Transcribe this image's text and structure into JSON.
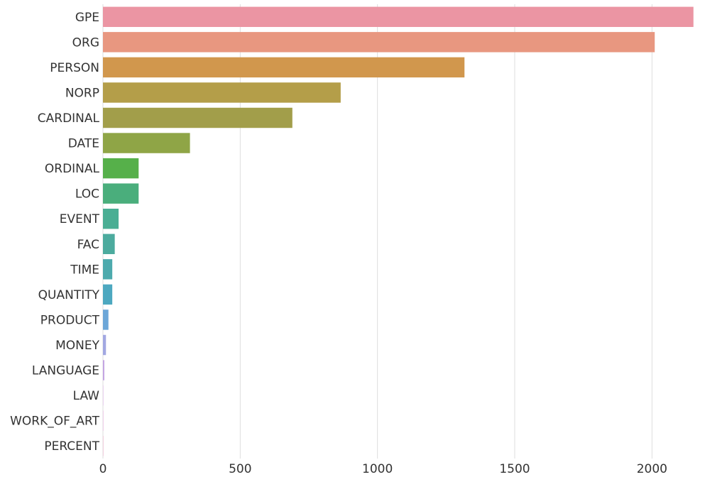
{
  "chart_data": {
    "type": "bar",
    "orientation": "horizontal",
    "title": "",
    "xlabel": "",
    "ylabel": "",
    "xlim": [
      0,
      2250
    ],
    "grid": "vertical-x",
    "categories": [
      "GPE",
      "ORG",
      "PERSON",
      "NORP",
      "CARDINAL",
      "DATE",
      "ORDINAL",
      "LOC",
      "EVENT",
      "FAC",
      "TIME",
      "QUANTITY",
      "PRODUCT",
      "MONEY",
      "LANGUAGE",
      "LAW",
      "WORK_OF_ART",
      "PERCENT"
    ],
    "values": [
      2151,
      2010,
      1317,
      866,
      690,
      317,
      130,
      130,
      57,
      43,
      34,
      34,
      20,
      11,
      5,
      1,
      1,
      1
    ],
    "colors": [
      "#eb95a3",
      "#e89780",
      "#d1974d",
      "#b49e49",
      "#a29e4a",
      "#8fa546",
      "#56b04a",
      "#4aae7c",
      "#4aae94",
      "#4cab9e",
      "#4daaad",
      "#4da8c0",
      "#6da7d8",
      "#a2a8e2",
      "#c3a3e2",
      "#d49ce1",
      "#e292d2",
      "#e893ba"
    ],
    "xticks": [
      "0",
      "500",
      "1000",
      "1500",
      "2000"
    ],
    "xtick_values": [
      0,
      500,
      1000,
      1500,
      2000
    ]
  }
}
